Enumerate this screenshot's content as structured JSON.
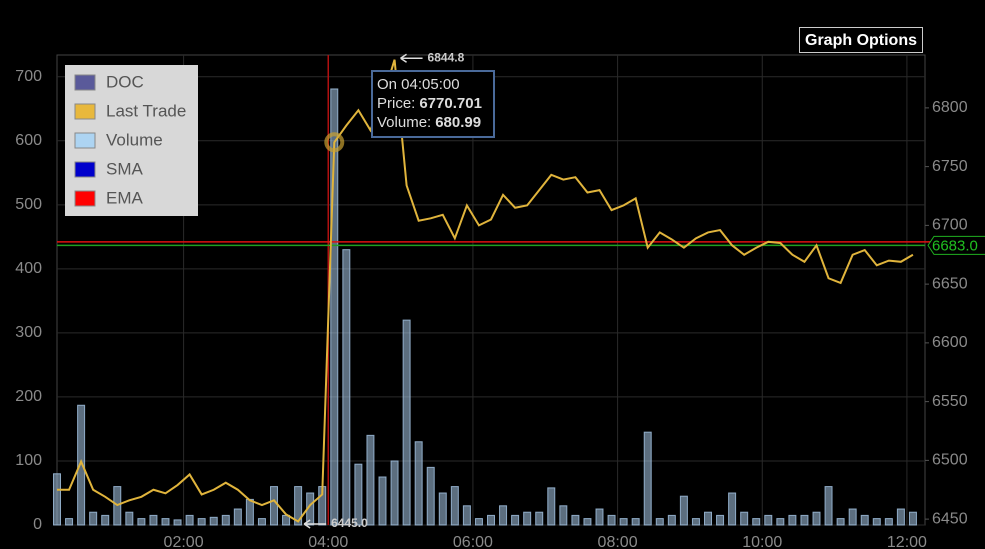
{
  "chart_data": {
    "type": "line",
    "button": "Graph Options",
    "x": [
      15,
      25,
      35,
      45,
      55,
      65,
      75,
      85,
      95,
      105,
      115,
      125,
      135,
      145,
      155,
      165,
      175,
      185,
      195,
      205,
      215,
      225,
      235,
      245,
      255,
      265,
      275,
      285,
      295,
      305,
      315,
      325,
      335,
      345,
      355,
      365,
      375,
      385,
      395,
      405,
      415,
      425,
      435,
      445,
      455,
      465,
      475,
      485,
      495,
      505,
      515,
      525,
      535,
      545,
      555,
      565,
      575,
      585,
      595,
      605,
      615,
      625,
      635,
      645,
      655,
      665,
      675,
      685,
      695,
      705,
      715,
      725
    ],
    "xlim": [
      15,
      735
    ],
    "xticks": [
      {
        "value": 120,
        "label": "02:00"
      },
      {
        "value": 240,
        "label": "04:00"
      },
      {
        "value": 360,
        "label": "06:00"
      },
      {
        "value": 480,
        "label": "08:00"
      },
      {
        "value": 600,
        "label": "10:00"
      },
      {
        "value": 720,
        "label": "12:00"
      }
    ],
    "ylim": [
      0,
      734
    ],
    "yticks": [
      0,
      100,
      200,
      300,
      400,
      500,
      600,
      700
    ],
    "y2lim": [
      6445,
      6845
    ],
    "y2ticks": [
      6450,
      6500,
      6550,
      6600,
      6650,
      6700,
      6750,
      6800
    ],
    "grid": true,
    "series": [
      {
        "name": "Last Trade",
        "color": "#e0b43c",
        "axis": "y2",
        "values": [
          6475,
          6475,
          6499,
          6475,
          6469,
          6462,
          6466,
          6469,
          6475,
          6472,
          6479,
          6488,
          6471,
          6475,
          6481,
          6475,
          6466,
          6462,
          6466,
          6454,
          6448,
          6462,
          6471,
          6770.701,
          6785,
          6798,
          6781,
          6807,
          6841,
          6734,
          6704,
          6706,
          6709,
          6689,
          6717,
          6700,
          6705,
          6726,
          6715,
          6717,
          6730,
          6743,
          6739,
          6741,
          6728,
          6730,
          6713,
          6717,
          6723,
          6681,
          6694,
          6688,
          6681,
          6689,
          6694,
          6696,
          6683,
          6675,
          6681,
          6686,
          6685,
          6675,
          6669,
          6683,
          6655,
          6651,
          6675,
          6679,
          6666,
          6670,
          6669,
          6675
        ]
      },
      {
        "name": "Volume",
        "color": "#a8c8e8",
        "values": [
          80,
          10,
          187,
          20,
          15,
          60,
          20,
          10,
          15,
          10,
          8,
          15,
          10,
          12,
          15,
          25,
          40,
          10,
          60,
          15,
          60,
          50,
          60,
          680.99,
          430,
          95,
          140,
          75,
          100,
          320,
          130,
          90,
          50,
          60,
          30,
          10,
          15,
          30,
          15,
          20,
          20,
          58,
          30,
          15,
          10,
          25,
          15,
          10,
          10,
          145,
          10,
          15,
          45,
          10,
          20,
          15,
          50,
          20,
          10,
          15,
          10,
          15,
          15,
          20,
          60,
          10,
          25,
          15,
          10,
          10,
          25,
          20
        ]
      }
    ],
    "legend": {
      "position": "upper left",
      "items": [
        {
          "name": "DOC",
          "color": "#5a5a9a"
        },
        {
          "name": "Last Trade",
          "color": "#e8b83c"
        },
        {
          "name": "Volume",
          "color": "#add4f2"
        },
        {
          "name": "SMA",
          "color": "#0000cc"
        },
        {
          "name": "EMA",
          "color": "#ff0000"
        }
      ]
    },
    "ema_value": 6686,
    "last_price": {
      "value": 6683,
      "label": "6683.0"
    },
    "max_annotation": 6844.8,
    "min_annotation": {
      "value": 6445,
      "label": "6445.0"
    },
    "crosshair_x": 240,
    "tooltip": {
      "time": "On 04:05:00",
      "price_label": "Price:",
      "price": 6770.701,
      "volume_label": "Volume:",
      "volume": 680.99
    }
  }
}
